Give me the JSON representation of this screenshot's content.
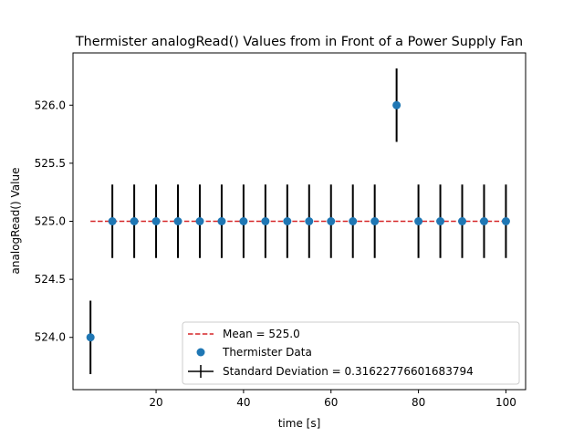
{
  "chart_data": {
    "type": "scatter",
    "title": "Thermister analogRead() Values from in Front of a Power Supply Fan",
    "xlabel": "time [s]",
    "ylabel": "analogRead() Value",
    "xlim": [
      1,
      104.5
    ],
    "ylim": [
      523.55,
      526.45
    ],
    "xticks": [
      20,
      40,
      60,
      80,
      100
    ],
    "xtick_labels": [
      "20",
      "40",
      "60",
      "80",
      "100"
    ],
    "yticks": [
      524.0,
      524.5,
      525.0,
      525.5,
      526.0
    ],
    "ytick_labels": [
      "524.0",
      "524.5",
      "525.0",
      "525.5",
      "526.0"
    ],
    "grid": false,
    "legend_position": "lower right",
    "series": [
      {
        "name": "Thermister Data",
        "kind": "scatter",
        "color": "#1f77b4",
        "x": [
          5,
          10,
          15,
          20,
          25,
          30,
          35,
          40,
          45,
          50,
          55,
          60,
          65,
          70,
          75,
          80,
          85,
          90,
          95,
          100
        ],
        "y": [
          524,
          525,
          525,
          525,
          525,
          525,
          525,
          525,
          525,
          525,
          525,
          525,
          525,
          525,
          526,
          525,
          525,
          525,
          525,
          525
        ]
      },
      {
        "name": "Mean = 525.0",
        "kind": "hline",
        "color": "#d62728",
        "style": "dashed",
        "x": [
          5,
          100
        ],
        "y": [
          525.0,
          525.0
        ]
      },
      {
        "name": "Standard Deviation = 0.31622776601683794",
        "kind": "errorbar",
        "color": "#000000",
        "yerr": 0.31622776601683794
      }
    ]
  }
}
